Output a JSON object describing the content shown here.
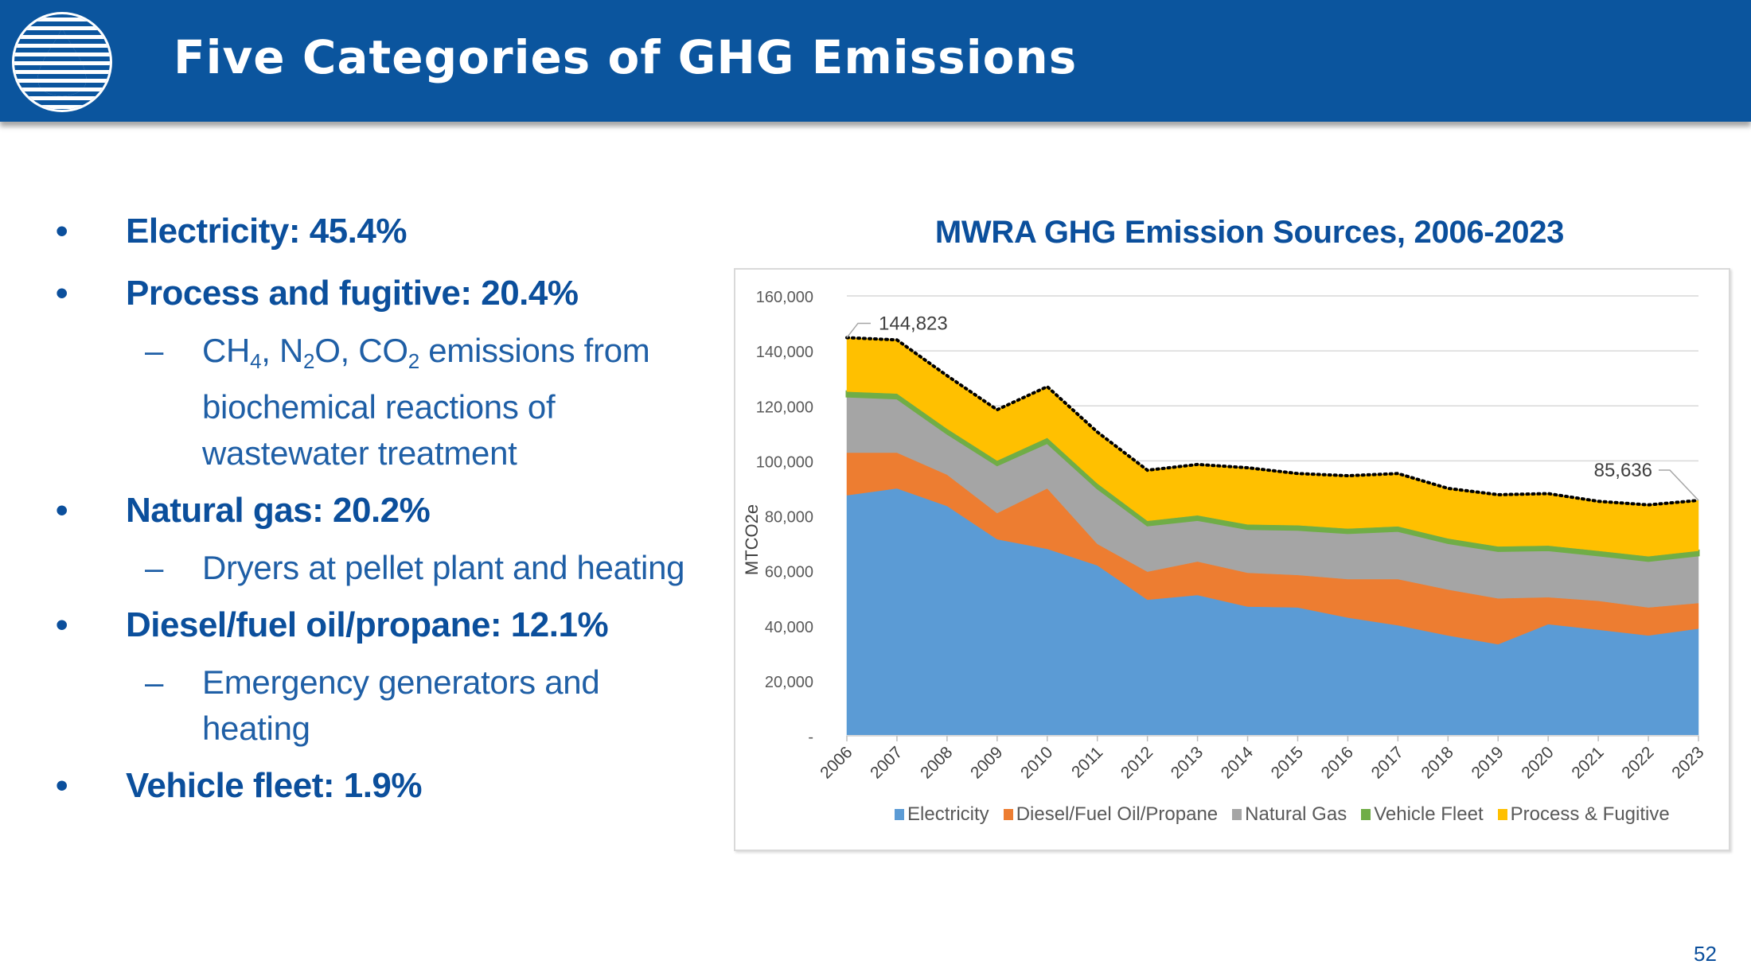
{
  "header": {
    "title": "Five Categories of GHG Emissions",
    "logo_icon": "water-drop-logo-icon",
    "background_color": "#0b559e"
  },
  "bullets": [
    {
      "text": "Electricity: 45.4%",
      "subs": []
    },
    {
      "text": "Process and fugitive: 20.4%",
      "subs": [
        {
          "parts": [
            [
              "CH",
              ""
            ],
            [
              "4",
              "sub"
            ],
            [
              ", N",
              ""
            ],
            [
              "2",
              "sub"
            ],
            [
              "O, CO",
              ""
            ],
            [
              "2",
              "sub"
            ],
            [
              " emissions from biochemical reactions of wastewater treatment",
              ""
            ]
          ]
        }
      ]
    },
    {
      "text": "Natural gas: 20.2%",
      "subs": [
        {
          "parts": [
            [
              "Dryers at pellet plant and heating",
              ""
            ]
          ]
        }
      ]
    },
    {
      "text": "Diesel/fuel oil/propane: 12.1%",
      "subs": [
        {
          "parts": [
            [
              "Emergency generators and heating",
              ""
            ]
          ]
        }
      ]
    },
    {
      "text": "Vehicle fleet: 1.9%",
      "subs": []
    }
  ],
  "bullet_glyph": "•",
  "dash_glyph": "–",
  "page_number": "52",
  "chart_data": {
    "type": "area",
    "stacked": true,
    "title": "MWRA GHG Emission Sources, 2006-2023",
    "xlabel": "",
    "ylabel": "MTCO2e",
    "ylim": [
      0,
      160000
    ],
    "yticks": [
      0,
      20000,
      40000,
      60000,
      80000,
      100000,
      120000,
      140000,
      160000
    ],
    "ytick_labels": [
      "-",
      "20,000",
      "40,000",
      "60,000",
      "80,000",
      "100,000",
      "120,000",
      "140,000",
      "160,000"
    ],
    "grid": true,
    "legend_position": "bottom",
    "categories": [
      "2006",
      "2007",
      "2008",
      "2009",
      "2010",
      "2011",
      "2012",
      "2013",
      "2014",
      "2015",
      "2016",
      "2017",
      "2018",
      "2019",
      "2020",
      "2021",
      "2022",
      "2023"
    ],
    "series": [
      {
        "name": "Electricity",
        "color": "#5b9bd5",
        "values": [
          87500,
          90000,
          83600,
          71500,
          68000,
          62000,
          49500,
          51200,
          47000,
          46700,
          43000,
          40200,
          36500,
          33300,
          40600,
          38600,
          36500,
          39000
        ]
      },
      {
        "name": "Diesel/Fuel Oil/Propane",
        "color": "#ed7d31",
        "values": [
          15500,
          13000,
          11400,
          9500,
          22000,
          7800,
          10200,
          12200,
          12300,
          11800,
          14000,
          16800,
          16700,
          16700,
          9800,
          10500,
          10200,
          9300
        ]
      },
      {
        "name": "Natural Gas",
        "color": "#a5a5a5",
        "values": [
          20500,
          19800,
          15000,
          17500,
          16600,
          20300,
          16900,
          15200,
          16000,
          16500,
          16800,
          17600,
          17000,
          17300,
          17200,
          16600,
          17000,
          17400
        ]
      },
      {
        "name": "Vehicle Fleet",
        "color": "#70ad47",
        "values": [
          1700,
          1700,
          1700,
          1600,
          1800,
          1700,
          1600,
          1600,
          1600,
          1600,
          1600,
          1600,
          1600,
          1600,
          1600,
          1600,
          1600,
          1600
        ]
      },
      {
        "name": "Process & Fugitive",
        "color": "#ffc000",
        "values": [
          19623,
          19500,
          19300,
          18500,
          18600,
          18700,
          18400,
          18500,
          20600,
          18800,
          19200,
          19200,
          18200,
          18800,
          18900,
          18000,
          18700,
          18336
        ]
      }
    ],
    "totals_line": {
      "style": "dotted",
      "color": "#000000"
    },
    "annotations": [
      {
        "category": "2006",
        "text": "144,823",
        "value": 144823
      },
      {
        "category": "2023",
        "text": "85,636",
        "value": 85636
      }
    ]
  }
}
